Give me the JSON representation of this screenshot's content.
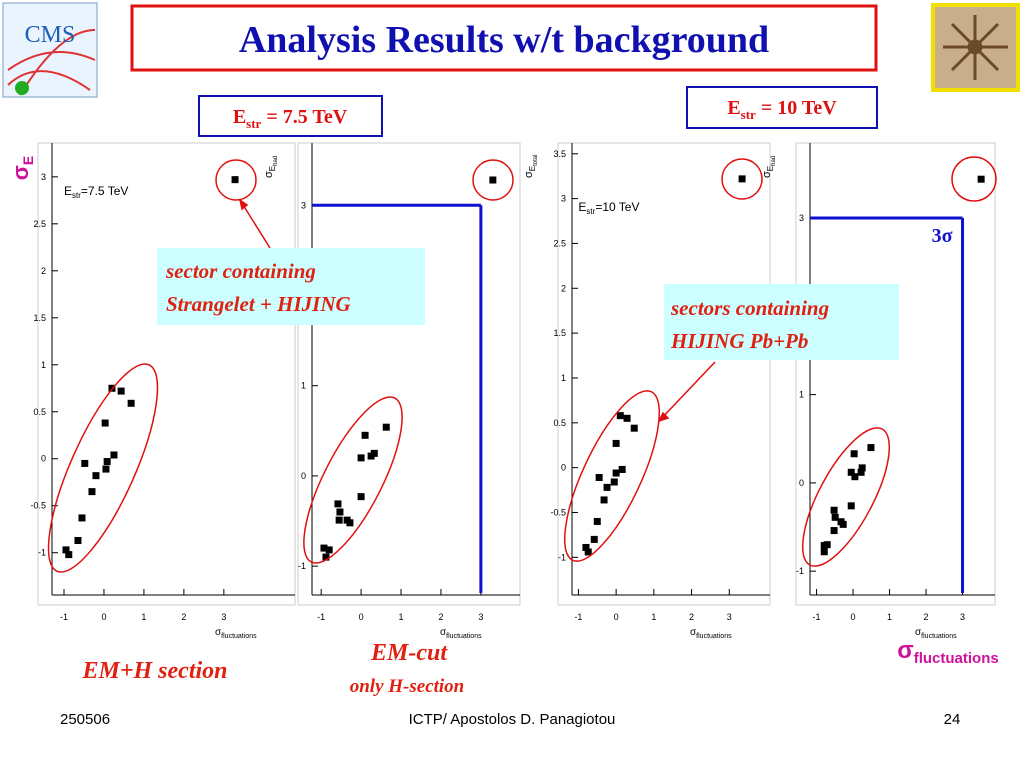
{
  "slide": {
    "logo_text": "CMS",
    "title": "Analysis Results w/t background",
    "badges": [
      [
        "E",
        "str",
        " = 7.5 TeV"
      ],
      [
        "E",
        "str",
        " = 10 TeV"
      ]
    ],
    "annotations": [
      [
        "sector containing",
        "Strangelet + HIJING"
      ],
      [
        "sectors containing",
        "HIJING Pb+Pb"
      ]
    ],
    "left_axis_label": [
      "σ",
      "E"
    ],
    "right_axis_label": [
      "σ",
      "fluctuations"
    ],
    "section_labels": [
      "EM+H section",
      "EM-cut",
      "only H-section"
    ],
    "footer": {
      "date": "250506",
      "author": "ICTP/ Apostolos D. Panagiotou",
      "page": "24"
    }
  },
  "chart_data": [
    {
      "type": "scatter",
      "color": "#000000",
      "label": [
        "E",
        "str",
        "=7.5 TeV"
      ],
      "xlabel": [
        "σ",
        "fluctuations"
      ],
      "x": [
        -0.95,
        -0.88,
        -0.65,
        -0.55,
        -0.3,
        -0.48,
        -0.2,
        0.05,
        0.08,
        0.25,
        0.03,
        0.2,
        0.43,
        0.68,
        3.28
      ],
      "values": [
        -0.97,
        -1.02,
        -0.87,
        -0.63,
        -0.35,
        -0.05,
        -0.18,
        -0.11,
        -0.03,
        0.04,
        0.38,
        0.75,
        0.72,
        0.59,
        2.97
      ],
      "xlim": [
        -1.3,
        4.78
      ],
      "ylim": [
        -1.45,
        3.36
      ],
      "xticks": [
        -1,
        0,
        1,
        2,
        3
      ],
      "yticks": [
        -1,
        -0.5,
        0,
        0.5,
        1,
        1.5,
        2,
        2.5,
        3
      ]
    },
    {
      "type": "scatter",
      "color": "#000000",
      "xlabel": [
        "σ",
        "fluctuations"
      ],
      "ylabel": [
        "σ",
        "E",
        "had"
      ],
      "x": [
        -0.93,
        -0.88,
        -0.8,
        -0.58,
        -0.53,
        -0.55,
        -0.35,
        -0.28,
        0,
        0,
        0.1,
        0.25,
        0.33,
        0.63,
        3.3
      ],
      "values": [
        -0.8,
        -0.9,
        -0.82,
        -0.31,
        -0.4,
        -0.49,
        -0.49,
        -0.52,
        -0.23,
        0.2,
        0.45,
        0.22,
        0.25,
        0.54,
        3.28
      ],
      "xlim": [
        -1.23,
        3.98
      ],
      "ylim": [
        -1.32,
        3.69
      ],
      "xticks": [
        -1,
        0,
        1,
        2,
        3
      ],
      "yticks": [
        -1,
        0,
        1,
        2,
        3
      ],
      "cut_x": 3,
      "cut_y": 3
    },
    {
      "type": "scatter",
      "color": "#000000",
      "label": [
        "E",
        "str",
        "=10 TeV"
      ],
      "xlabel": [
        "σ",
        "fluctuations"
      ],
      "ylabel": [
        "σ",
        "E",
        "total"
      ],
      "x": [
        -0.8,
        -0.74,
        -0.58,
        -0.5,
        -0.32,
        -0.45,
        -0.24,
        -0.05,
        0,
        0.16,
        0,
        0.11,
        0.29,
        0.48,
        3.34
      ],
      "values": [
        -0.89,
        -0.94,
        -0.8,
        -0.6,
        -0.36,
        -0.11,
        -0.22,
        -0.16,
        -0.06,
        -0.02,
        0.27,
        0.58,
        0.55,
        0.44,
        3.22
      ],
      "xlim": [
        -1.17,
        4.08
      ],
      "ylim": [
        -1.42,
        3.62
      ],
      "xticks": [
        -1,
        0,
        1,
        2,
        3
      ],
      "yticks": [
        -1,
        -0.5,
        0,
        0.5,
        1,
        1.5,
        2,
        2.5,
        3,
        3.5
      ]
    },
    {
      "type": "scatter",
      "color": "#000000",
      "xlabel": [
        "σ",
        "fluctuations"
      ],
      "ylabel": [
        "σ",
        "E",
        "had"
      ],
      "x": [
        -0.79,
        -0.71,
        -0.79,
        -0.52,
        -0.49,
        -0.27,
        -0.33,
        -0.52,
        -0.05,
        -0.05,
        0.05,
        0.22,
        0.25,
        0.03,
        0.49,
        3.51
      ],
      "values": [
        -0.71,
        -0.7,
        -0.78,
        -0.31,
        -0.39,
        -0.47,
        -0.44,
        -0.54,
        -0.26,
        0.12,
        0.07,
        0.12,
        0.17,
        0.33,
        0.4,
        3.44
      ],
      "xlim": [
        -1.18,
        3.89
      ],
      "ylim": [
        -1.27,
        3.85
      ],
      "xticks": [
        -1,
        0,
        1,
        2,
        3
      ],
      "yticks": [
        -1,
        0,
        1,
        2,
        3
      ],
      "cut_x": 3,
      "cut_y": 3,
      "cut_label": "3σ"
    }
  ]
}
